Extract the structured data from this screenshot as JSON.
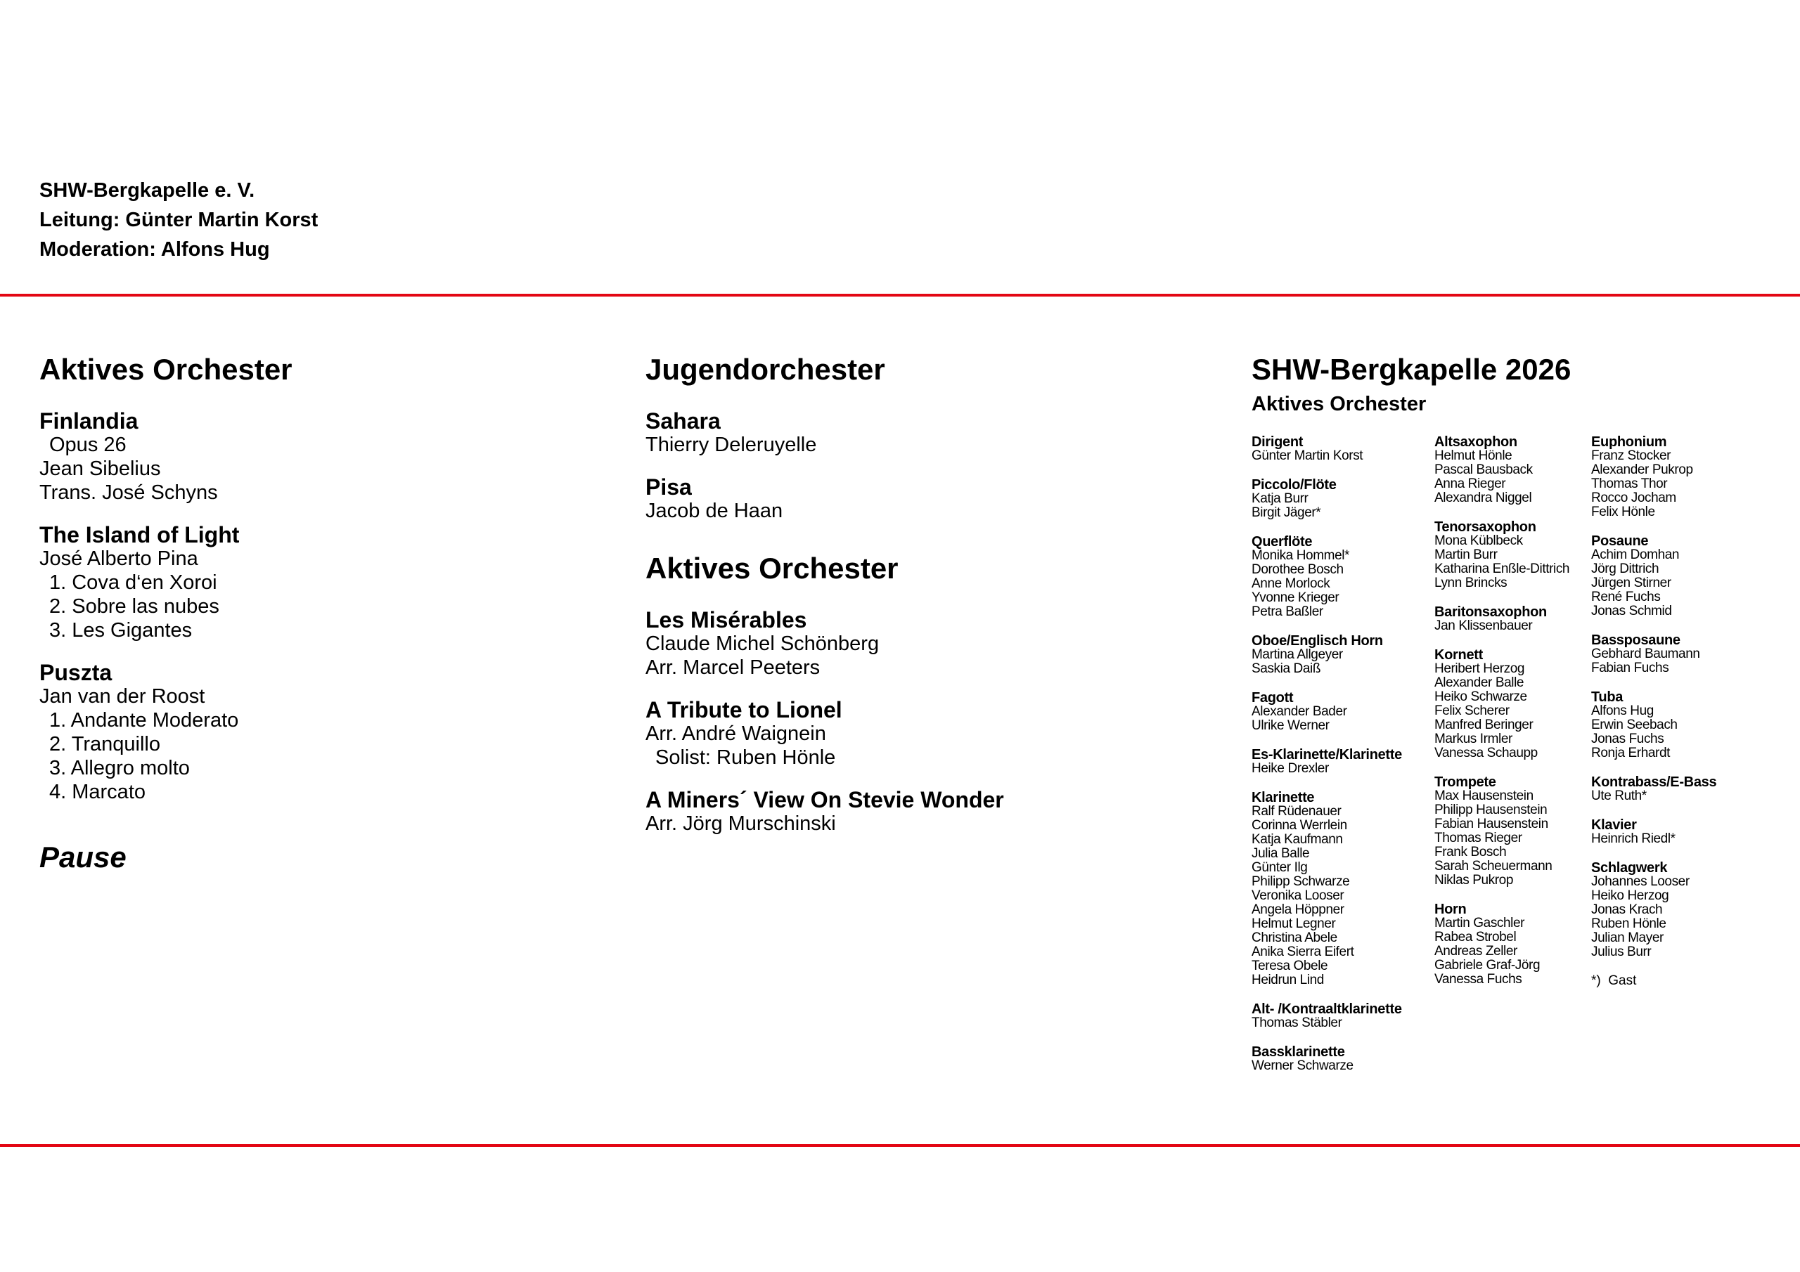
{
  "header": {
    "line1": "SHW-Bergkapelle e. V.",
    "line2": "Leitung: Günter Martin Korst",
    "line3": "Moderation: Alfons Hug"
  },
  "colors": {
    "rule": "#e30613"
  },
  "left": {
    "heading": "Aktives Orchester",
    "pieces": [
      {
        "title": "Finlandia",
        "lines": [
          " Opus 26",
          "Jean Sibelius",
          "Trans. José Schyns"
        ]
      },
      {
        "title": "The Island of Light",
        "lines": [
          "José Alberto Pina",
          " 1. Cova d‘en Xoroi",
          " 2. Sobre las nubes",
          " 3. Les Gigantes"
        ]
      },
      {
        "title": "Puszta",
        "lines": [
          "Jan van der Roost",
          " 1. Andante Moderato",
          " 2. Tranquillo",
          " 3. Allegro molto",
          " 4. Marcato"
        ]
      }
    ],
    "pause": "Pause"
  },
  "middle": {
    "heading1": "Jugendorchester",
    "pieces1": [
      {
        "title": "Sahara",
        "lines": [
          "Thierry Deleruyelle"
        ]
      },
      {
        "title": "Pisa",
        "lines": [
          "Jacob de Haan"
        ]
      }
    ],
    "heading2": "Aktives Orchester",
    "pieces2": [
      {
        "title": "Les Misérables",
        "lines": [
          "Claude Michel Schönberg",
          "Arr. Marcel Peeters"
        ]
      },
      {
        "title": "A Tribute to Lionel",
        "lines": [
          "Arr. André Waignein",
          " Solist: Ruben Hönle"
        ]
      },
      {
        "title": "A Miners´ View On Stevie Wonder",
        "lines": [
          "Arr. Jörg Murschinski"
        ]
      }
    ]
  },
  "right": {
    "heading": "SHW-Bergkapelle 2026",
    "subheading": "Aktives Orchester",
    "columns": [
      [
        {
          "title": "Dirigent",
          "members": [
            "Günter Martin Korst"
          ]
        },
        {
          "title": "Piccolo/Flöte",
          "members": [
            "Katja Burr",
            "Birgit Jäger*"
          ]
        },
        {
          "title": "Querflöte",
          "members": [
            "Monika Hommel*",
            "Dorothee Bosch",
            "Anne Morlock",
            "Yvonne Krieger",
            "Petra Baßler"
          ]
        },
        {
          "title": "Oboe/Englisch Horn",
          "members": [
            "Martina Allgeyer",
            "Saskia Daiß"
          ]
        },
        {
          "title": "Fagott",
          "members": [
            "Alexander Bader",
            "Ulrike Werner"
          ]
        },
        {
          "title": "Es-Klarinette/Klarinette",
          "members": [
            "Heike Drexler"
          ]
        },
        {
          "title": "Klarinette",
          "members": [
            "Ralf Rüdenauer",
            "Corinna Werrlein",
            "Katja Kaufmann",
            "Julia Balle",
            "Günter Ilg",
            "Philipp Schwarze",
            "Veronika Looser",
            "Angela Höppner",
            "Helmut Legner",
            "Christina Abele",
            "Anika Sierra Eifert",
            "Teresa Obele",
            "Heidrun Lind"
          ]
        },
        {
          "title": "Alt- /Kontraaltklarinette",
          "members": [
            "Thomas Stäbler"
          ]
        },
        {
          "title": "Bassklarinette",
          "members": [
            "Werner Schwarze"
          ]
        }
      ],
      [
        {
          "title": "Altsaxophon",
          "members": [
            "Helmut Hönle",
            "Pascal Bausback",
            "Anna Rieger",
            "Alexandra Niggel"
          ]
        },
        {
          "title": "Tenorsaxophon",
          "members": [
            "Mona Küblbeck",
            "Martin Burr",
            "Katharina Enßle-Dittrich",
            "Lynn Brincks"
          ]
        },
        {
          "title": "Baritonsaxophon",
          "members": [
            "Jan Klissenbauer"
          ]
        },
        {
          "title": "Kornett",
          "members": [
            "Heribert Herzog",
            "Alexander Balle",
            "Heiko Schwarze",
            "Felix Scherer",
            "Manfred Beringer",
            "Markus Irmler",
            "Vanessa Schaupp"
          ]
        },
        {
          "title": "Trompete",
          "members": [
            "Max Hausenstein",
            "Philipp Hausenstein",
            "Fabian Hausenstein",
            "Thomas Rieger",
            "Frank Bosch",
            "Sarah Scheuermann",
            "Niklas Pukrop"
          ]
        },
        {
          "title": "Horn",
          "members": [
            "Martin Gaschler",
            "Rabea Strobel",
            "Andreas Zeller",
            "Gabriele Graf-Jörg",
            "Vanessa Fuchs"
          ]
        }
      ],
      [
        {
          "title": "Euphonium",
          "members": [
            "Franz Stocker",
            "Alexander Pukrop",
            "Thomas Thor",
            "Rocco Jocham",
            "Felix Hönle"
          ]
        },
        {
          "title": "Posaune",
          "members": [
            "Achim Domhan",
            "Jörg Dittrich",
            "Jürgen Stirner",
            "René Fuchs",
            "Jonas Schmid"
          ]
        },
        {
          "title": "Bassposaune",
          "members": [
            "Gebhard Baumann",
            "Fabian Fuchs"
          ]
        },
        {
          "title": "Tuba",
          "members": [
            "Alfons Hug",
            "Erwin Seebach",
            "Jonas Fuchs",
            "Ronja Erhardt"
          ]
        },
        {
          "title": "Kontrabass/E-Bass",
          "members": [
            "Ute Ruth*"
          ]
        },
        {
          "title": "Klavier",
          "members": [
            "Heinrich Riedl*"
          ]
        },
        {
          "title": "Schlagwerk",
          "members": [
            "Johannes Looser",
            "Heiko Herzog",
            "Jonas Krach",
            "Ruben Hönle",
            "Julian Mayer",
            "Julius Burr"
          ]
        }
      ]
    ],
    "footnote": "*)  Gast"
  }
}
